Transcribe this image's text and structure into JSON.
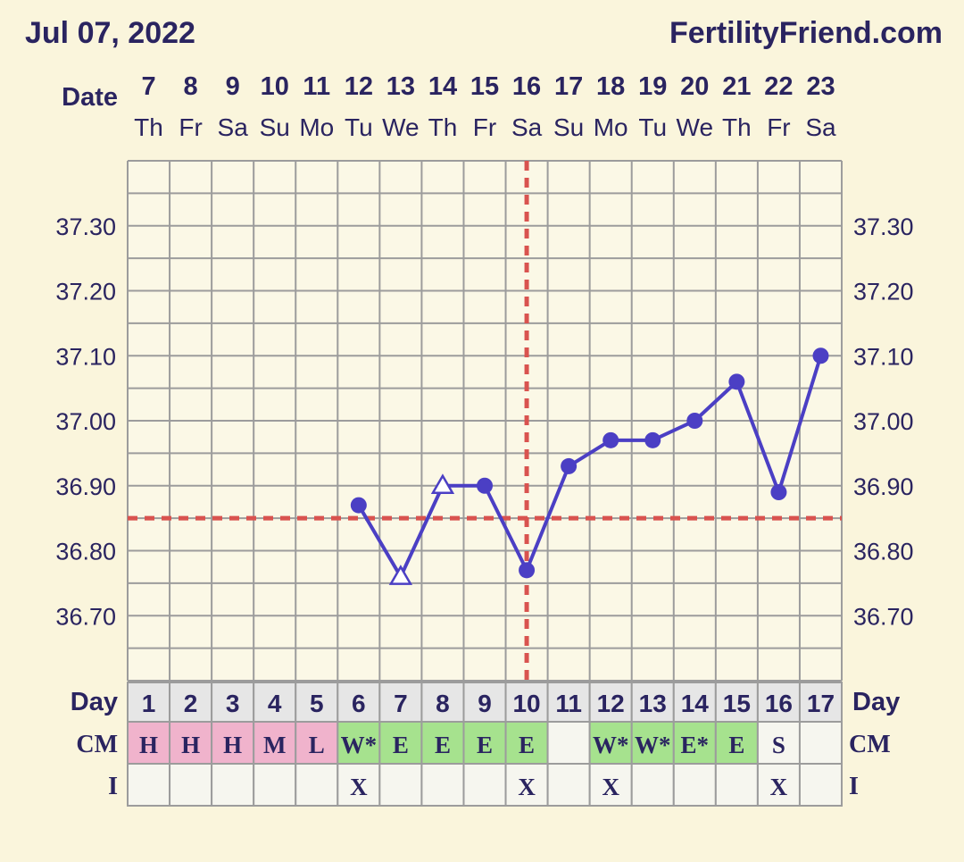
{
  "header": {
    "date": "Jul 07, 2022",
    "site": "FertilityFriend.com"
  },
  "labels": {
    "date": "Date",
    "day": "Day",
    "cm": "CM",
    "i": "I"
  },
  "colors": {
    "background": "#faf5dc",
    "plot_background": "#fbf8e6",
    "grid": "#9c9c9c",
    "line": "#4b3fc4",
    "reference_line": "#d9534f",
    "text": "#2a2460",
    "cm_fertile": "#a6e28e",
    "cm_menstrual": "#f0b3cc",
    "row_light": "#f6f6ef",
    "day_cell": "#e6e6e6"
  },
  "chart_data": {
    "type": "line",
    "title": "",
    "xlabel": "Date",
    "ylabel": "",
    "ylim": [
      36.6,
      37.4
    ],
    "y_ticks": [
      "37.30",
      "37.20",
      "37.10",
      "37.00",
      "36.90",
      "36.80",
      "36.70"
    ],
    "y_tick_values": [
      37.3,
      37.2,
      37.1,
      37.0,
      36.9,
      36.8,
      36.7
    ],
    "dates": [
      "7",
      "8",
      "9",
      "10",
      "11",
      "12",
      "13",
      "14",
      "15",
      "16",
      "17",
      "18",
      "19",
      "20",
      "21",
      "22",
      "23"
    ],
    "weekdays": [
      "Th",
      "Fr",
      "Sa",
      "Su",
      "Mo",
      "Tu",
      "We",
      "Th",
      "Fr",
      "Sa",
      "Su",
      "Mo",
      "Tu",
      "We",
      "Th",
      "Fr",
      "Sa"
    ],
    "cycle_days": [
      "1",
      "2",
      "3",
      "4",
      "5",
      "6",
      "7",
      "8",
      "9",
      "10",
      "11",
      "12",
      "13",
      "14",
      "15",
      "16",
      "17"
    ],
    "series": [
      {
        "values": [
          null,
          null,
          null,
          null,
          null,
          36.87,
          36.76,
          36.9,
          36.9,
          36.77,
          36.93,
          36.97,
          36.97,
          37.0,
          37.06,
          36.89,
          37.1
        ],
        "markers": [
          null,
          null,
          null,
          null,
          null,
          "dot",
          "triangle-open",
          "triangle-open",
          "dot",
          "dot",
          "dot",
          "dot",
          "dot",
          "dot",
          "dot",
          "dot",
          "dot"
        ]
      }
    ],
    "coverline": 36.85,
    "ovulation_day_index": 9,
    "grid": true,
    "cm": [
      {
        "value": "H",
        "type": "menstrual"
      },
      {
        "value": "H",
        "type": "menstrual"
      },
      {
        "value": "H",
        "type": "menstrual"
      },
      {
        "value": "M",
        "type": "menstrual"
      },
      {
        "value": "L",
        "type": "menstrual"
      },
      {
        "value": "W*",
        "type": "fertile"
      },
      {
        "value": "E",
        "type": "fertile"
      },
      {
        "value": "E",
        "type": "fertile"
      },
      {
        "value": "E",
        "type": "fertile"
      },
      {
        "value": "E",
        "type": "fertile"
      },
      {
        "value": "",
        "type": "none"
      },
      {
        "value": "W*",
        "type": "fertile"
      },
      {
        "value": "W*",
        "type": "fertile"
      },
      {
        "value": "E*",
        "type": "fertile"
      },
      {
        "value": "E",
        "type": "fertile"
      },
      {
        "value": "S",
        "type": "none"
      },
      {
        "value": "",
        "type": "none"
      }
    ],
    "intercourse": [
      "",
      "",
      "",
      "",
      "",
      "X",
      "",
      "",
      "",
      "X",
      "",
      "X",
      "",
      "",
      "",
      "X",
      ""
    ]
  }
}
